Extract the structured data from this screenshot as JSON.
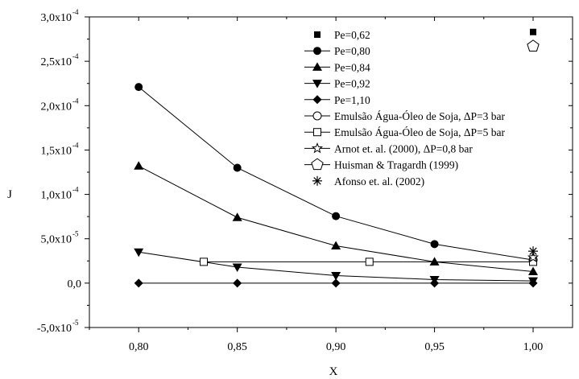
{
  "chart_data": {
    "type": "line",
    "xlabel": "X",
    "ylabel": "J",
    "xlim": [
      0.775,
      1.02
    ],
    "ylim": [
      -5e-05,
      0.0003
    ],
    "x_ticks": [
      0.8,
      0.85,
      0.9,
      0.95,
      1.0
    ],
    "x_tick_labels": [
      "0,80",
      "0,85",
      "0,90",
      "0,95",
      "1,00"
    ],
    "y_ticks": [
      -5e-05,
      0,
      5e-05,
      0.0001,
      0.00015,
      0.0002,
      0.00025,
      0.0003
    ],
    "y_tick_labels": [
      {
        "mantissa": "-5,0x10",
        "exp": "-5"
      },
      {
        "mantissa": "0,0",
        "exp": ""
      },
      {
        "mantissa": "5,0x10",
        "exp": "-5"
      },
      {
        "mantissa": "1,0x10",
        "exp": "-4"
      },
      {
        "mantissa": "1,5x10",
        "exp": "-4"
      },
      {
        "mantissa": "2,0x10",
        "exp": "-4"
      },
      {
        "mantissa": "2,5x10",
        "exp": "-4"
      },
      {
        "mantissa": "3,0x10",
        "exp": "-4"
      }
    ],
    "grid": false,
    "legend_position": "top-right",
    "series": [
      {
        "name": "Pe=0,62",
        "marker": "square-filled",
        "line": false,
        "points": [
          [
            1.0,
            0.000283
          ]
        ]
      },
      {
        "name": "Pe=0,80",
        "marker": "circle-filled",
        "line": true,
        "points": [
          [
            0.8,
            0.000221
          ],
          [
            0.85,
            0.00013
          ],
          [
            0.9,
            7.55e-05
          ],
          [
            0.95,
            4.4e-05
          ],
          [
            1.0,
            2.6e-05
          ]
        ]
      },
      {
        "name": "Pe=0,84",
        "marker": "triangle-up-filled",
        "line": true,
        "points": [
          [
            0.8,
            0.000132
          ],
          [
            0.85,
            7.4e-05
          ],
          [
            0.9,
            4.2e-05
          ],
          [
            0.95,
            2.4e-05
          ],
          [
            1.0,
            1.3e-05
          ]
        ]
      },
      {
        "name": "Pe=0,92",
        "marker": "triangle-down-filled",
        "line": true,
        "points": [
          [
            0.8,
            3.5e-05
          ],
          [
            0.85,
            1.8e-05
          ],
          [
            0.9,
            8.5e-06
          ],
          [
            0.95,
            4e-06
          ],
          [
            1.0,
            2.5e-06
          ]
        ]
      },
      {
        "name": "Pe=1,10",
        "marker": "diamond-filled",
        "line": true,
        "points": [
          [
            0.8,
            0.0
          ],
          [
            0.85,
            0.0
          ],
          [
            0.9,
            0.0
          ],
          [
            0.95,
            0.0
          ],
          [
            1.0,
            0.0
          ]
        ]
      },
      {
        "name": "Emulsão Água-Óleo de Soja, ΔP=3 bar",
        "marker": "circle-open",
        "line": true,
        "points": [
          [
            1.0,
            2.6e-05
          ]
        ]
      },
      {
        "name": "Emulsão Água-Óleo de Soja, ΔP=5 bar",
        "marker": "square-open",
        "line": true,
        "points": [
          [
            0.833,
            2.4e-05
          ],
          [
            0.917,
            2.4e-05
          ],
          [
            1.0,
            2.4e-05
          ]
        ]
      },
      {
        "name": "Arnot et. al. (2000), ΔP=0,8 bar",
        "marker": "star-open",
        "line": true,
        "points": [
          [
            1.0,
            2.9e-05
          ]
        ]
      },
      {
        "name": "Huisman & Tragardh (1999)",
        "marker": "pentagon-open",
        "line": true,
        "points": [
          [
            1.0,
            0.000267
          ]
        ]
      },
      {
        "name": "Afonso et. al. (2002)",
        "marker": "asterisk",
        "line": false,
        "points": [
          [
            1.0,
            3.6e-05
          ]
        ]
      }
    ]
  }
}
